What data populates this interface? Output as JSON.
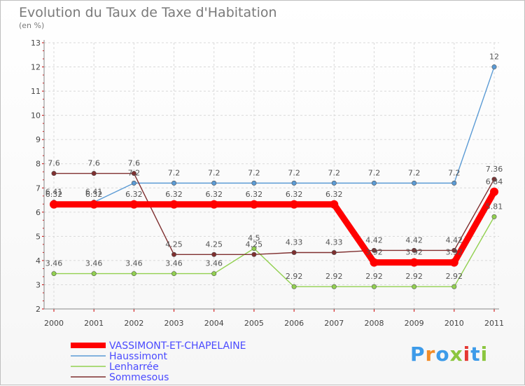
{
  "header": {
    "title": "Evolution du Taux de Taxe d'Habitation",
    "subtitle": "(en %)"
  },
  "logo": {
    "text": "Proxiti"
  },
  "chart_data": {
    "type": "line",
    "title": "Evolution du Taux de Taxe d'Habitation",
    "ylabel": "(en %)",
    "xlabel": "",
    "ylim": [
      2,
      13
    ],
    "grid": true,
    "yticks": [
      "2",
      "3",
      "4",
      "5",
      "6",
      "7",
      "8",
      "9",
      "10",
      "11",
      "12",
      "13"
    ],
    "categories": [
      "2000",
      "2001",
      "2002",
      "2003",
      "2004",
      "2005",
      "2006",
      "2007",
      "2008",
      "2009",
      "2010",
      "2011"
    ],
    "legend_position": "bottom-left",
    "series": [
      {
        "name": "VASSIMONT-ET-CHAPELAINE",
        "color": "#ff0000",
        "values": [
          6.32,
          6.32,
          6.32,
          6.32,
          6.32,
          6.32,
          6.32,
          6.32,
          3.92,
          3.92,
          3.92,
          6.84
        ],
        "labels": [
          "6.32",
          "6.32",
          "6.32",
          "6.32",
          "6.32",
          "6.32",
          "6.32",
          "6.32",
          "3.92",
          "3.92",
          "3.92",
          "6.84"
        ]
      },
      {
        "name": "Haussimont",
        "color": "#5b9bd5",
        "values": [
          6.41,
          6.41,
          7.2,
          7.2,
          7.2,
          7.2,
          7.2,
          7.2,
          7.2,
          7.2,
          7.2,
          12
        ],
        "labels": [
          "6.41",
          "6.41",
          "7.2",
          "7.2",
          "7.2",
          "7.2",
          "7.2",
          "7.2",
          "7.2",
          "7.2",
          "7.2",
          "12"
        ]
      },
      {
        "name": "Lenharrée",
        "color": "#92d050",
        "values": [
          3.46,
          3.46,
          3.46,
          3.46,
          3.46,
          4.5,
          2.92,
          2.92,
          2.92,
          2.92,
          2.92,
          5.81
        ],
        "labels": [
          "3.46",
          "3.46",
          "3.46",
          "3.46",
          "3.46",
          "4.5",
          "2.92",
          "2.92",
          "2.92",
          "2.92",
          "2.92",
          "5.81"
        ]
      },
      {
        "name": "Sommesous",
        "color": "#7f2f2f",
        "values": [
          7.6,
          7.6,
          7.6,
          4.25,
          4.25,
          4.25,
          4.33,
          4.33,
          4.42,
          4.42,
          4.42,
          7.36
        ],
        "labels": [
          "7.6",
          "7.6",
          "7.6",
          "4.25",
          "4.25",
          "4.25",
          "4.33",
          "4.33",
          "4.42",
          "4.42",
          "4.42",
          "7.36"
        ]
      }
    ]
  }
}
